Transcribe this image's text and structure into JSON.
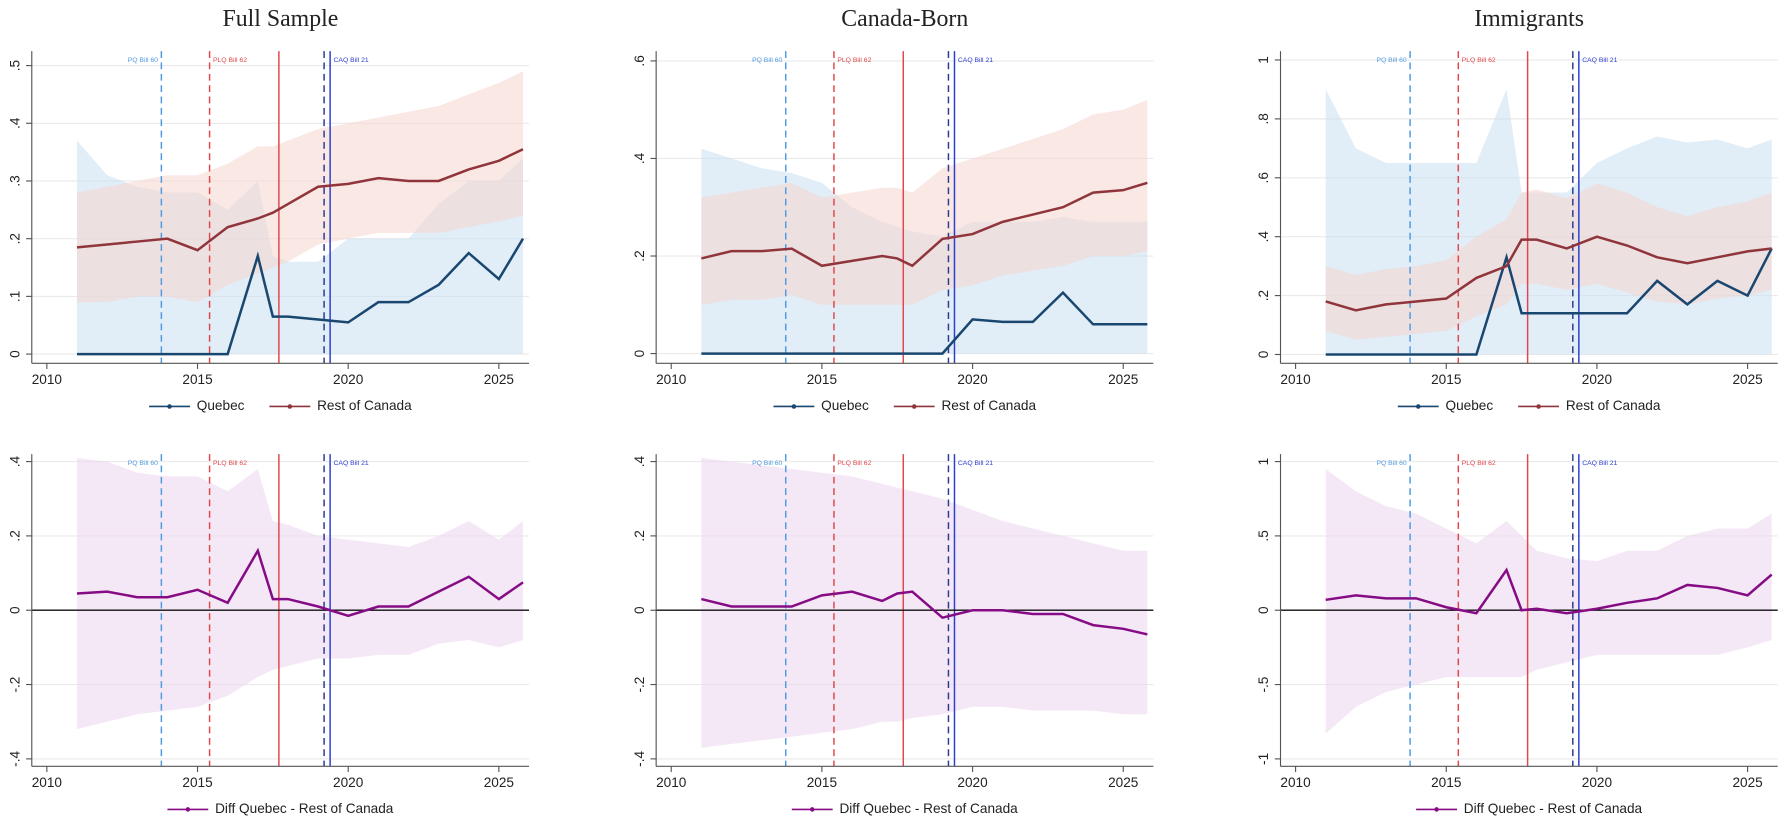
{
  "events": [
    {
      "x": 2013.8,
      "label": "PQ Bill 60",
      "color": "#4f9ae0",
      "dash": true
    },
    {
      "x": 2015.4,
      "label": "PLQ Bill 62",
      "color": "#e0474c",
      "dash": true
    },
    {
      "x": 2017.7,
      "color": "#e0474c",
      "dash": false
    },
    {
      "x": 2019.2,
      "color": "#2b3a8f",
      "dash": true
    },
    {
      "x": 2019.4,
      "label": "CAQ Bill 21",
      "color": "#2a3fd0",
      "dash": false
    }
  ],
  "chart_data": [
    {
      "type": "line",
      "title": "Full Sample",
      "x": [
        2011,
        2012,
        2013,
        2014,
        2015,
        2016,
        2017,
        2017.5,
        2018,
        2019,
        2020,
        2021,
        2022,
        2023,
        2024,
        2025,
        2025.8
      ],
      "xlim": [
        2009.5,
        2026
      ],
      "xticks": [
        2010,
        2015,
        2020,
        2025
      ],
      "ylim": [
        -0.016,
        0.525
      ],
      "yticks": [
        0,
        {
          "value": 0.1,
          "label": ".1"
        },
        {
          "value": 0.2,
          "label": ".2"
        },
        {
          "value": 0.3,
          "label": ".3"
        },
        {
          "value": 0.4,
          "label": ".4"
        },
        {
          "value": 0.5,
          "label": ".5"
        }
      ],
      "grid": true,
      "series": [
        {
          "name": "Quebec",
          "color": "#1a476f",
          "band_color": "#c9dff0",
          "values": [
            0,
            0,
            0,
            0,
            0,
            0,
            0.17,
            0.065,
            0.065,
            0.06,
            0.055,
            0.09,
            0.09,
            0.12,
            0.175,
            0.13,
            0.2
          ],
          "lower": [
            0,
            0,
            0,
            0,
            0,
            0,
            0,
            0,
            0,
            0,
            0,
            0,
            0,
            0,
            0,
            0,
            0
          ],
          "upper": [
            0.37,
            0.31,
            0.29,
            0.28,
            0.28,
            0.25,
            0.3,
            0.17,
            0.16,
            0.16,
            0.2,
            0.2,
            0.2,
            0.26,
            0.3,
            0.3,
            0.34
          ]
        },
        {
          "name": "Rest of Canada",
          "color": "#90353b",
          "band_color": "#f5d5d0",
          "values": [
            0.185,
            0.19,
            0.195,
            0.2,
            0.18,
            0.22,
            0.235,
            0.245,
            0.26,
            0.29,
            0.295,
            0.305,
            0.3,
            0.3,
            0.32,
            0.335,
            0.355
          ],
          "lower": [
            0.09,
            0.09,
            0.1,
            0.1,
            0.09,
            0.12,
            0.14,
            0.15,
            0.16,
            0.19,
            0.2,
            0.21,
            0.21,
            0.21,
            0.22,
            0.23,
            0.24
          ],
          "upper": [
            0.28,
            0.29,
            0.3,
            0.31,
            0.31,
            0.33,
            0.36,
            0.36,
            0.37,
            0.39,
            0.4,
            0.41,
            0.42,
            0.43,
            0.45,
            0.47,
            0.49
          ]
        }
      ]
    },
    {
      "type": "line",
      "title": "Canada-Born",
      "x": [
        2011,
        2012,
        2013,
        2014,
        2015,
        2016,
        2017,
        2017.5,
        2018,
        2019,
        2020,
        2021,
        2022,
        2023,
        2024,
        2025,
        2025.8
      ],
      "xlim": [
        2009.5,
        2026
      ],
      "xticks": [
        2010,
        2015,
        2020,
        2025
      ],
      "ylim": [
        -0.02,
        0.62
      ],
      "yticks": [
        0,
        {
          "value": 0.2,
          "label": ".2"
        },
        {
          "value": 0.4,
          "label": ".4"
        },
        {
          "value": 0.6,
          "label": ".6"
        }
      ],
      "grid": true,
      "series": [
        {
          "name": "Quebec",
          "color": "#1a476f",
          "band_color": "#c9dff0",
          "values": [
            0,
            0,
            0,
            0,
            0,
            0,
            0,
            0,
            0,
            0,
            0.07,
            0.065,
            0.065,
            0.125,
            0.06,
            0.06,
            0.06
          ],
          "lower": [
            0,
            0,
            0,
            0,
            0,
            0,
            0,
            0,
            0,
            0,
            0,
            0,
            0,
            0,
            0,
            0,
            0
          ],
          "upper": [
            0.42,
            0.4,
            0.38,
            0.37,
            0.35,
            0.3,
            0.27,
            0.26,
            0.25,
            0.24,
            0.27,
            0.27,
            0.27,
            0.28,
            0.27,
            0.27,
            0.27
          ]
        },
        {
          "name": "Rest of Canada",
          "color": "#90353b",
          "band_color": "#f5d5d0",
          "values": [
            0.195,
            0.21,
            0.21,
            0.215,
            0.18,
            0.19,
            0.2,
            0.195,
            0.18,
            0.235,
            0.245,
            0.27,
            0.285,
            0.3,
            0.33,
            0.335,
            0.35
          ],
          "lower": [
            0.1,
            0.11,
            0.11,
            0.12,
            0.1,
            0.1,
            0.1,
            0.1,
            0.1,
            0.13,
            0.14,
            0.16,
            0.17,
            0.18,
            0.2,
            0.2,
            0.21
          ],
          "upper": [
            0.32,
            0.33,
            0.34,
            0.35,
            0.32,
            0.33,
            0.34,
            0.34,
            0.33,
            0.38,
            0.4,
            0.42,
            0.44,
            0.46,
            0.49,
            0.5,
            0.52
          ]
        }
      ]
    },
    {
      "type": "line",
      "title": "Immigrants",
      "x": [
        2011,
        2012,
        2013,
        2014,
        2015,
        2016,
        2017,
        2017.5,
        2018,
        2019,
        2020,
        2021,
        2022,
        2023,
        2024,
        2025,
        2025.8
      ],
      "xlim": [
        2009.5,
        2026
      ],
      "xticks": [
        2010,
        2015,
        2020,
        2025
      ],
      "ylim": [
        -0.03,
        1.03
      ],
      "yticks": [
        0,
        {
          "value": 0.2,
          "label": ".2"
        },
        {
          "value": 0.4,
          "label": ".4"
        },
        {
          "value": 0.6,
          "label": ".6"
        },
        {
          "value": 0.8,
          "label": ".8"
        },
        1
      ],
      "grid": true,
      "series": [
        {
          "name": "Quebec",
          "color": "#1a476f",
          "band_color": "#c9dff0",
          "values": [
            0,
            0,
            0,
            0,
            0,
            0,
            0.33,
            0.14,
            0.14,
            0.14,
            0.14,
            0.14,
            0.25,
            0.17,
            0.25,
            0.2,
            0.36
          ],
          "lower": [
            0,
            0,
            0,
            0,
            0,
            0,
            0,
            0,
            0,
            0,
            0,
            0,
            0,
            0,
            0,
            0,
            0
          ],
          "upper": [
            0.9,
            0.7,
            0.65,
            0.65,
            0.65,
            0.65,
            0.9,
            0.55,
            0.55,
            0.55,
            0.65,
            0.7,
            0.74,
            0.72,
            0.73,
            0.7,
            0.73
          ]
        },
        {
          "name": "Rest of Canada",
          "color": "#90353b",
          "band_color": "#f5d5d0",
          "values": [
            0.18,
            0.15,
            0.17,
            0.18,
            0.19,
            0.26,
            0.3,
            0.39,
            0.39,
            0.36,
            0.4,
            0.37,
            0.33,
            0.31,
            0.33,
            0.35,
            0.36
          ],
          "lower": [
            0.08,
            0.05,
            0.06,
            0.07,
            0.08,
            0.13,
            0.17,
            0.24,
            0.24,
            0.22,
            0.24,
            0.21,
            0.18,
            0.17,
            0.19,
            0.2,
            0.22
          ],
          "upper": [
            0.3,
            0.27,
            0.29,
            0.3,
            0.32,
            0.4,
            0.46,
            0.55,
            0.56,
            0.53,
            0.58,
            0.55,
            0.5,
            0.47,
            0.5,
            0.52,
            0.55
          ]
        }
      ]
    },
    {
      "type": "line",
      "x": [
        2011,
        2012,
        2013,
        2014,
        2015,
        2016,
        2017,
        2017.5,
        2018,
        2019,
        2020,
        2021,
        2022,
        2023,
        2024,
        2025,
        2025.8
      ],
      "xlim": [
        2009.5,
        2026
      ],
      "xticks": [
        2010,
        2015,
        2020,
        2025
      ],
      "ylim": [
        -0.42,
        0.42
      ],
      "yticks": [
        {
          "value": -0.4,
          "label": "-.4"
        },
        {
          "value": -0.2,
          "label": "-.2"
        },
        0,
        {
          "value": 0.2,
          "label": ".2"
        },
        {
          "value": 0.4,
          "label": ".4"
        }
      ],
      "grid": true,
      "hline": 0,
      "series": [
        {
          "name": "Diff Quebec - Rest of Canada",
          "color": "#850c85",
          "band_color": "#ecd6ee",
          "values": [
            0.045,
            0.05,
            0.035,
            0.035,
            0.055,
            0.02,
            0.16,
            0.03,
            0.03,
            0.01,
            -0.015,
            0.01,
            0.01,
            0.05,
            0.09,
            0.03,
            0.075
          ],
          "lower": [
            -0.32,
            -0.3,
            -0.28,
            -0.27,
            -0.26,
            -0.23,
            -0.18,
            -0.16,
            -0.15,
            -0.13,
            -0.13,
            -0.12,
            -0.12,
            -0.09,
            -0.08,
            -0.1,
            -0.08
          ],
          "upper": [
            0.41,
            0.4,
            0.37,
            0.36,
            0.36,
            0.32,
            0.38,
            0.24,
            0.23,
            0.2,
            0.19,
            0.18,
            0.17,
            0.2,
            0.24,
            0.19,
            0.24
          ]
        }
      ]
    },
    {
      "type": "line",
      "x": [
        2011,
        2012,
        2013,
        2014,
        2015,
        2016,
        2017,
        2017.5,
        2018,
        2019,
        2020,
        2021,
        2022,
        2023,
        2024,
        2025,
        2025.8
      ],
      "xlim": [
        2009.5,
        2026
      ],
      "xticks": [
        2010,
        2015,
        2020,
        2025
      ],
      "ylim": [
        -0.42,
        0.42
      ],
      "yticks": [
        {
          "value": -0.4,
          "label": "-.4"
        },
        {
          "value": -0.2,
          "label": "-.2"
        },
        0,
        {
          "value": 0.2,
          "label": ".2"
        },
        {
          "value": 0.4,
          "label": ".4"
        }
      ],
      "grid": true,
      "hline": 0,
      "series": [
        {
          "name": "Diff Quebec - Rest of Canada",
          "color": "#850c85",
          "band_color": "#ecd6ee",
          "values": [
            0.03,
            0.01,
            0.01,
            0.01,
            0.04,
            0.05,
            0.025,
            0.045,
            0.05,
            -0.02,
            0,
            0,
            -0.01,
            -0.01,
            -0.04,
            -0.05,
            -0.065
          ],
          "lower": [
            -0.37,
            -0.36,
            -0.35,
            -0.34,
            -0.33,
            -0.32,
            -0.3,
            -0.3,
            -0.29,
            -0.28,
            -0.26,
            -0.26,
            -0.27,
            -0.27,
            -0.27,
            -0.28,
            -0.28
          ],
          "upper": [
            0.41,
            0.4,
            0.39,
            0.38,
            0.37,
            0.36,
            0.34,
            0.33,
            0.32,
            0.3,
            0.27,
            0.24,
            0.22,
            0.2,
            0.18,
            0.16,
            0.16
          ]
        }
      ]
    },
    {
      "type": "line",
      "x": [
        2011,
        2012,
        2013,
        2014,
        2015,
        2016,
        2017,
        2017.5,
        2018,
        2019,
        2020,
        2021,
        2022,
        2023,
        2024,
        2025,
        2025.8
      ],
      "xlim": [
        2009.5,
        2026
      ],
      "xticks": [
        2010,
        2015,
        2020,
        2025
      ],
      "ylim": [
        -1.05,
        1.05
      ],
      "yticks": [
        -1,
        {
          "value": -0.5,
          "label": "-.5"
        },
        0,
        {
          "value": 0.5,
          "label": ".5"
        },
        1
      ],
      "grid": true,
      "hline": 0,
      "series": [
        {
          "name": "Diff Quebec - Rest of Canada",
          "color": "#850c85",
          "band_color": "#ecd6ee",
          "values": [
            0.07,
            0.1,
            0.08,
            0.08,
            0.02,
            -0.02,
            0.27,
            0,
            0.01,
            -0.02,
            0.01,
            0.05,
            0.08,
            0.17,
            0.15,
            0.1,
            0.24
          ],
          "lower": [
            -0.83,
            -0.65,
            -0.55,
            -0.5,
            -0.45,
            -0.45,
            -0.45,
            -0.45,
            -0.4,
            -0.35,
            -0.3,
            -0.3,
            -0.3,
            -0.3,
            -0.3,
            -0.25,
            -0.2
          ],
          "upper": [
            0.95,
            0.8,
            0.7,
            0.65,
            0.55,
            0.45,
            0.6,
            0.5,
            0.4,
            0.35,
            0.33,
            0.4,
            0.4,
            0.5,
            0.55,
            0.55,
            0.65
          ]
        }
      ]
    }
  ]
}
